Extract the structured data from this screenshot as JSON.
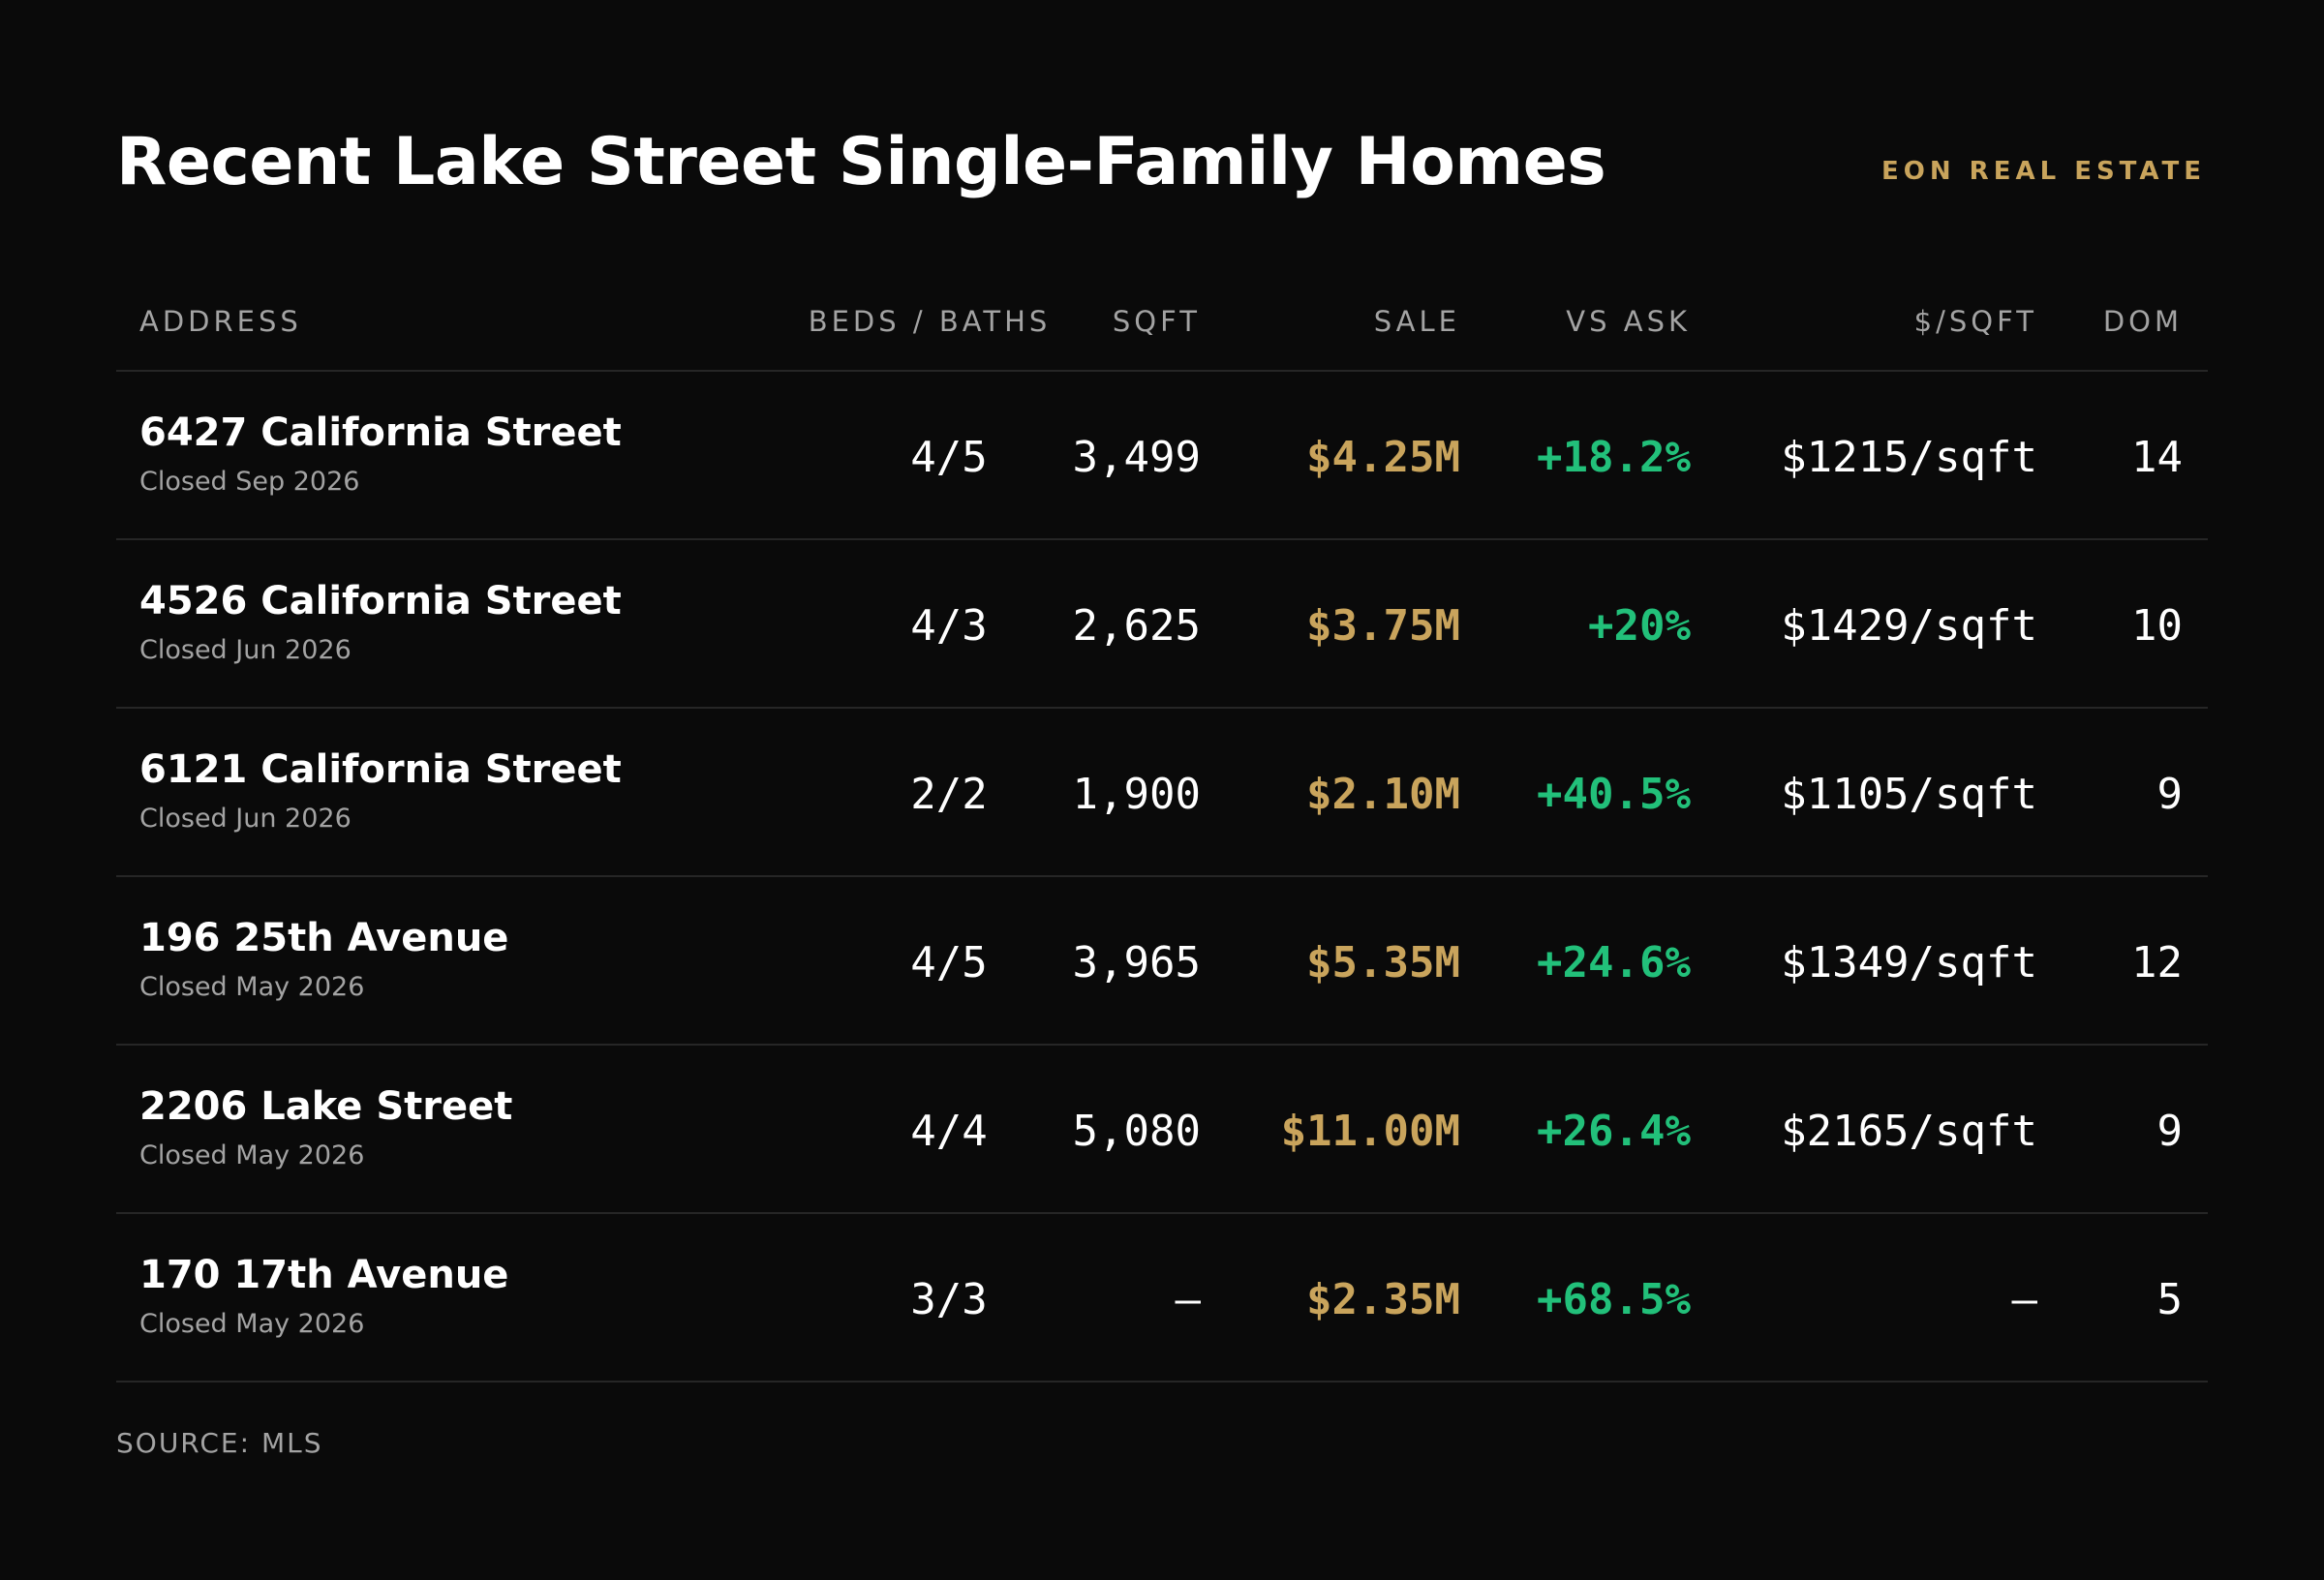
{
  "header": {
    "title": "Recent Lake Street Single-Family Homes",
    "brand": "EON REAL ESTATE"
  },
  "table": {
    "columns": {
      "address": "ADDRESS",
      "beds_baths": "BEDS / BATHS",
      "sqft": "SQFT",
      "sale": "SALE",
      "vs_ask": "VS ASK",
      "price_per_sqft": "$/SQFT",
      "dom": "DOM"
    },
    "rows": [
      {
        "address": "6427 California Street",
        "closed": "Closed Sep 2026",
        "beds_baths": "4/5",
        "sqft": "3,499",
        "sale": "$4.25M",
        "vs_ask": "+18.2%",
        "price_per_sqft": "$1215/sqft",
        "dom": "14"
      },
      {
        "address": "4526 California Street",
        "closed": "Closed Jun 2026",
        "beds_baths": "4/3",
        "sqft": "2,625",
        "sale": "$3.75M",
        "vs_ask": "+20%",
        "price_per_sqft": "$1429/sqft",
        "dom": "10"
      },
      {
        "address": "6121 California Street",
        "closed": "Closed Jun 2026",
        "beds_baths": "2/2",
        "sqft": "1,900",
        "sale": "$2.10M",
        "vs_ask": "+40.5%",
        "price_per_sqft": "$1105/sqft",
        "dom": "9"
      },
      {
        "address": "196 25th Avenue",
        "closed": "Closed May 2026",
        "beds_baths": "4/5",
        "sqft": "3,965",
        "sale": "$5.35M",
        "vs_ask": "+24.6%",
        "price_per_sqft": "$1349/sqft",
        "dom": "12"
      },
      {
        "address": "2206 Lake Street",
        "closed": "Closed May 2026",
        "beds_baths": "4/4",
        "sqft": "5,080",
        "sale": "$11.00M",
        "vs_ask": "+26.4%",
        "price_per_sqft": "$2165/sqft",
        "dom": "9"
      },
      {
        "address": "170 17th Avenue",
        "closed": "Closed May 2026",
        "beds_baths": "3/3",
        "sqft": "—",
        "sale": "$2.35M",
        "vs_ask": "+68.5%",
        "price_per_sqft": "—",
        "dom": "5"
      }
    ]
  },
  "footer": {
    "source": "SOURCE: MLS"
  },
  "colors": {
    "background": "#0a0a0a",
    "accent_gold": "#c9a45c",
    "positive_green": "#22c07a",
    "muted_text": "#a3a3a3",
    "divider": "#262626"
  }
}
